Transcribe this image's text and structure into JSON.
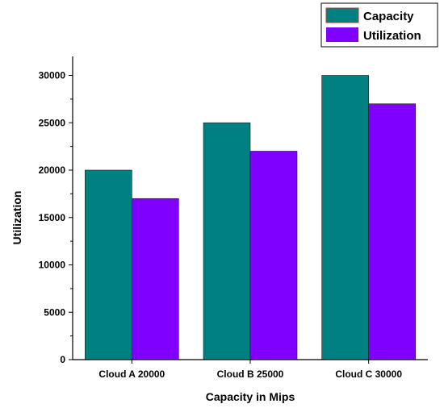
{
  "chart_data": {
    "type": "bar",
    "categories": [
      "Cloud A 20000",
      "Cloud B 25000",
      "Cloud C 30000"
    ],
    "series": [
      {
        "name": "Capacity",
        "values": [
          20000,
          25000,
          30000
        ],
        "color": "#008080"
      },
      {
        "name": "Utilization",
        "values": [
          17000,
          22000,
          27000
        ],
        "color": "#8000ff"
      }
    ],
    "xlabel": "Capacity in Mips",
    "ylabel": "Utilization",
    "ylim": [
      0,
      32000
    ],
    "yticks": [
      0,
      5000,
      10000,
      15000,
      20000,
      25000,
      30000
    ],
    "ytick_labels": [
      "0",
      "5000",
      "10000",
      "15000",
      "20000",
      "25000",
      "30000"
    ],
    "grid": false,
    "legend_position": "top-right"
  }
}
